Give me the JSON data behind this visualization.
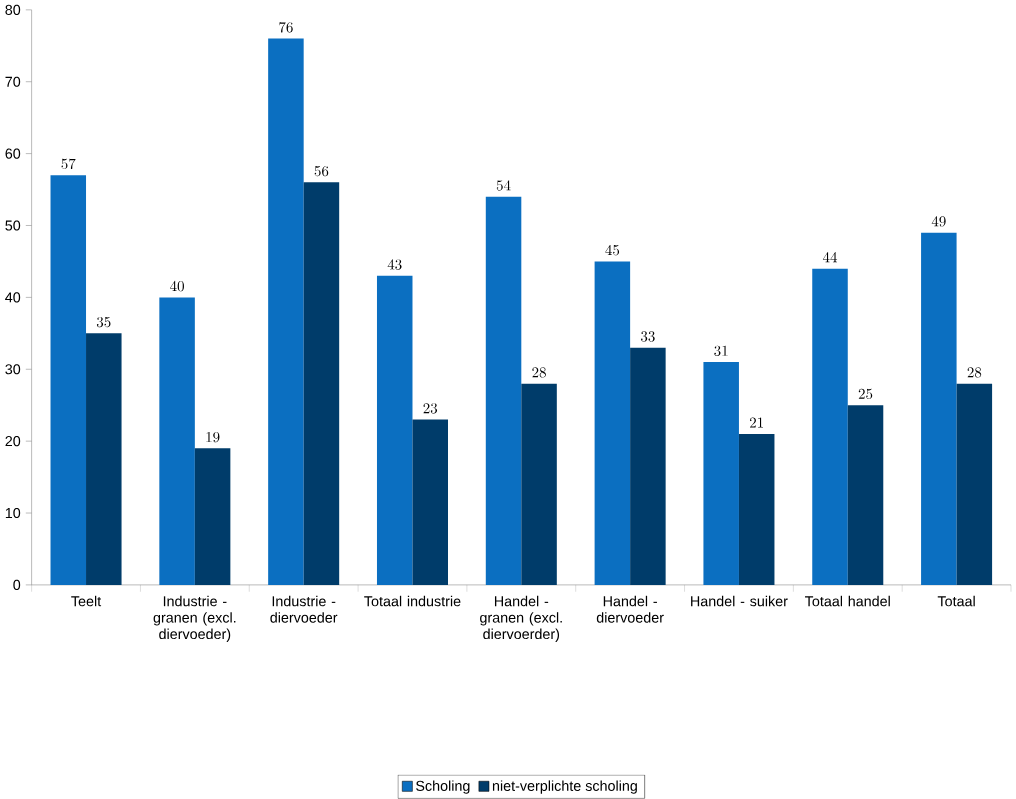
{
  "chart_data": {
    "type": "bar",
    "categories": [
      "Teelt",
      "Industrie - granen (excl. diervoeder)",
      "Industrie - diervoeder",
      "Totaal industrie",
      "Handel - granen (excl. diervoerder)",
      "Handel - diervoeder",
      "Handel - suiker",
      "Totaal handel",
      "Totaal"
    ],
    "series": [
      {
        "name": "Scholing",
        "color": "#0b6fc1",
        "values": [
          57,
          40,
          76,
          43,
          54,
          45,
          31,
          44,
          49
        ]
      },
      {
        "name": "niet-verplichte scholing",
        "color": "#003c6a",
        "values": [
          35,
          19,
          56,
          23,
          28,
          33,
          21,
          25,
          28
        ]
      }
    ],
    "ylim": [
      0,
      80
    ],
    "yticks": [
      0,
      10,
      20,
      30,
      40,
      50,
      60,
      70,
      80
    ],
    "data_labels": true,
    "legend": "bottom"
  }
}
